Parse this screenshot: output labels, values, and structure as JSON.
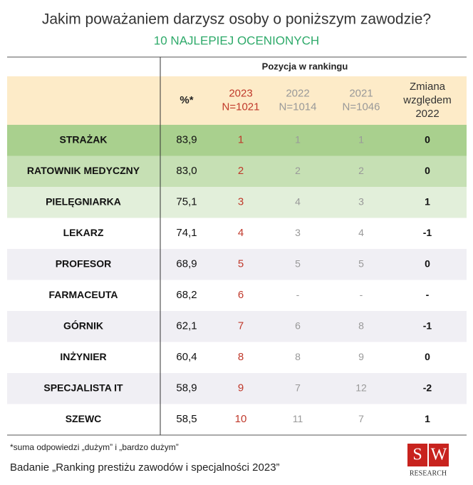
{
  "title": "Jakim poważaniem darzysz osoby o poniższym zawodzie?",
  "subtitle": "10 NAJLEPIEJ OCENIONYCH",
  "table": {
    "group_header": "Pozycja w rankingu",
    "header": [
      "%*",
      [
        "2023",
        "N=1021"
      ],
      [
        "2022",
        "N=1014"
      ],
      [
        "2021",
        "N=1046"
      ],
      [
        "Zmiana",
        "względem",
        "2022"
      ]
    ],
    "rows": [
      [
        "STRAŻAK",
        "83,9",
        "1",
        "1",
        "1",
        "0"
      ],
      [
        "RATOWNIK MEDYCZNY",
        "83,0",
        "2",
        "2",
        "2",
        "0"
      ],
      [
        "PIELĘGNIARKA",
        "75,1",
        "3",
        "4",
        "3",
        "1"
      ],
      [
        "LEKARZ",
        "74,1",
        "4",
        "3",
        "4",
        "-1"
      ],
      [
        "PROFESOR",
        "68,9",
        "5",
        "5",
        "5",
        "0"
      ],
      [
        "FARMACEUTA",
        "68,2",
        "6",
        "-",
        "-",
        "-"
      ],
      [
        "GÓRNIK",
        "62,1",
        "7",
        "6",
        "8",
        "-1"
      ],
      [
        "INŻYNIER",
        "60,4",
        "8",
        "8",
        "9",
        "0"
      ],
      [
        "SPECJALISTA IT",
        "58,9",
        "9",
        "7",
        "12",
        "-2"
      ],
      [
        "SZEWC",
        "58,5",
        "10",
        "11",
        "7",
        "1"
      ]
    ]
  },
  "footnote": "*suma odpowiedzi „dużym” i „bardzo dużym”",
  "source": "Badanie „Ranking prestiżu zawodów i specjalności 2023”",
  "logo": {
    "letters": [
      "S",
      "W"
    ],
    "text": "RESEARCH"
  }
}
